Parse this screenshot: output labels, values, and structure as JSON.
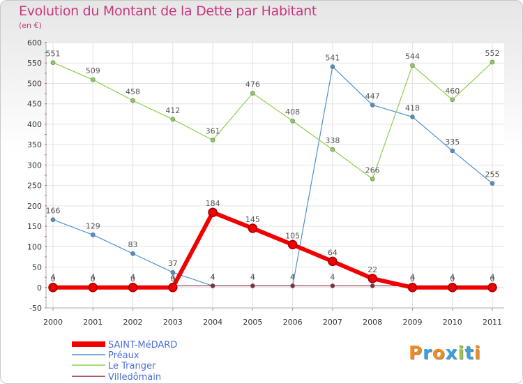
{
  "header": {
    "title": "Evolution du Montant de la Dette par Habitant",
    "subtitle": "(en €)"
  },
  "logo": {
    "text": "Proxiti",
    "letters": [
      "P",
      "r",
      "o",
      "x",
      "i",
      "t",
      "i"
    ],
    "colors": [
      "#f08c1f",
      "#3f9fd8",
      "#f08c1f",
      "#3f9fd8",
      "#9bc93a",
      "#3f9fd8",
      "#f08c1f"
    ]
  },
  "chart_data": {
    "type": "line",
    "x": [
      "2000",
      "2001",
      "2002",
      "2003",
      "2004",
      "2005",
      "2006",
      "2007",
      "2008",
      "2009",
      "2010",
      "2011"
    ],
    "ylim": [
      -50,
      600
    ],
    "yticks": [
      -50,
      0,
      50,
      100,
      150,
      200,
      250,
      300,
      350,
      400,
      450,
      500,
      550,
      600
    ],
    "grid": true,
    "legend_position": "bottom-left",
    "series": [
      {
        "name": "Préaux",
        "color": "#4a90d2",
        "width": 1.2,
        "values": [
          166,
          129,
          83,
          37,
          4,
          4,
          4,
          541,
          447,
          418,
          335,
          255
        ],
        "labels": [
          "166",
          "129",
          "83",
          "37",
          "4",
          "4",
          "4",
          "541",
          "447",
          "418",
          "335",
          "255"
        ]
      },
      {
        "name": "Le Tranger",
        "color": "#8ccf4e",
        "width": 1.2,
        "values": [
          551,
          509,
          458,
          412,
          361,
          476,
          408,
          338,
          266,
          544,
          460,
          552
        ],
        "labels": [
          "551",
          "509",
          "458",
          "412",
          "361",
          "476",
          "408",
          "338",
          "266",
          "544",
          "460",
          "552"
        ]
      },
      {
        "name": "Villedômain",
        "color": "#8b2a3a",
        "width": 1.2,
        "values": [
          4,
          4,
          4,
          4,
          4,
          4,
          4,
          4,
          4,
          4,
          4,
          4
        ],
        "labels": [
          "4",
          "4",
          "4",
          "4",
          "4",
          "4",
          "4",
          "4",
          "4",
          "4",
          "4",
          "4"
        ]
      },
      {
        "name": "SAINT-MéDARD",
        "color": "#f00000",
        "width": 6,
        "values": [
          0,
          0,
          0,
          0,
          184,
          145,
          105,
          64,
          22,
          0,
          0,
          0
        ],
        "labels": [
          "0",
          "0",
          "0",
          "0",
          "184",
          "145",
          "105",
          "64",
          "22",
          "0",
          "0",
          "0"
        ]
      }
    ],
    "legend_order": [
      "SAINT-MéDARD",
      "Préaux",
      "Le Tranger",
      "Villedômain"
    ]
  }
}
